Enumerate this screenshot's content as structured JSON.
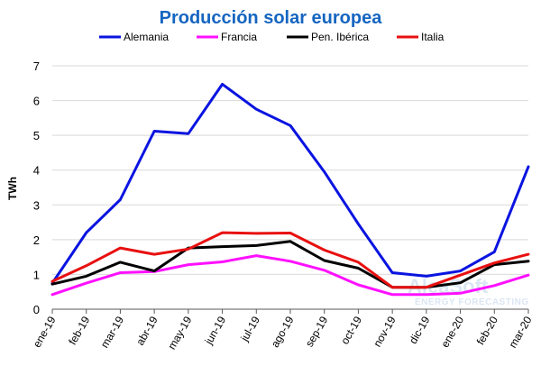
{
  "chart_data": {
    "type": "line",
    "title": "Producción solar europea",
    "xlabel": "",
    "ylabel": "TWh",
    "ylim": [
      0,
      7
    ],
    "yticks": [
      0,
      1,
      2,
      3,
      4,
      5,
      6,
      7
    ],
    "grid": true,
    "legend_position": "top",
    "categories": [
      "ene-19",
      "feb-19",
      "mar-19",
      "abr-19",
      "may-19",
      "jun-19",
      "jul-19",
      "ago-19",
      "sep-19",
      "oct-19",
      "nov-19",
      "dic-19",
      "ene-20",
      "feb-20",
      "mar-20"
    ],
    "series": [
      {
        "name": "Alemania",
        "color": "#0a14e0",
        "values": [
          0.75,
          2.2,
          3.15,
          5.12,
          5.05,
          6.47,
          5.75,
          5.28,
          3.95,
          2.45,
          1.05,
          0.95,
          1.1,
          1.65,
          4.1
        ]
      },
      {
        "name": "Francia",
        "color": "#ff10ff",
        "values": [
          0.42,
          0.75,
          1.05,
          1.08,
          1.28,
          1.36,
          1.54,
          1.38,
          1.12,
          0.7,
          0.42,
          0.42,
          0.46,
          0.68,
          0.98
        ]
      },
      {
        "name": "Pen. Ibérica",
        "color": "#000000",
        "values": [
          0.72,
          0.95,
          1.35,
          1.1,
          1.76,
          1.8,
          1.83,
          1.95,
          1.4,
          1.18,
          0.63,
          0.63,
          0.76,
          1.28,
          1.38
        ]
      },
      {
        "name": "Italia",
        "color": "#e81010",
        "values": [
          0.8,
          1.25,
          1.76,
          1.58,
          1.73,
          2.2,
          2.18,
          2.19,
          1.7,
          1.35,
          0.63,
          0.63,
          0.98,
          1.33,
          1.58
        ]
      }
    ],
    "watermark": {
      "line1": "AleaSoft",
      "line2": "ENERGY FORECASTING"
    }
  }
}
